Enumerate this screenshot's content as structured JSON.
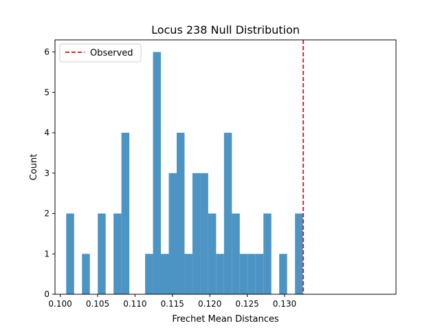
{
  "chart_data": {
    "type": "bar",
    "title": "Locus 238 Null Distribution",
    "xlabel": "Frechet Mean Distances",
    "ylabel": "Count",
    "xlim": [
      0.0993,
      0.1449
    ],
    "ylim": [
      0,
      6.3
    ],
    "xticks": [
      {
        "value": 0.1,
        "label": "0.100"
      },
      {
        "value": 0.105,
        "label": "0.105"
      },
      {
        "value": 0.11,
        "label": "0.110"
      },
      {
        "value": 0.115,
        "label": "0.115"
      },
      {
        "value": 0.12,
        "label": "0.120"
      },
      {
        "value": 0.125,
        "label": "0.125"
      },
      {
        "value": 0.13,
        "label": "0.130"
      }
    ],
    "yticks": [
      {
        "value": 0,
        "label": "0"
      },
      {
        "value": 1,
        "label": "1"
      },
      {
        "value": 2,
        "label": "2"
      },
      {
        "value": 3,
        "label": "3"
      },
      {
        "value": 4,
        "label": "4"
      },
      {
        "value": 5,
        "label": "5"
      },
      {
        "value": 6,
        "label": "6"
      }
    ],
    "bin_start": 0.1008,
    "bin_width": 0.001055,
    "counts": [
      2,
      0,
      1,
      0,
      2,
      0,
      2,
      4,
      0,
      0,
      1,
      6,
      1,
      3,
      4,
      1,
      3,
      3,
      2,
      1,
      4,
      2,
      1,
      1,
      1,
      2,
      0,
      1,
      0,
      2
    ],
    "bar_color": "#4c94c4",
    "observed": {
      "value": 0.1325,
      "label": "Observed",
      "color": "#d62728",
      "style": "dashed"
    },
    "legend": {
      "placement": "top-left",
      "entries": [
        "Observed"
      ]
    },
    "grid": false
  }
}
